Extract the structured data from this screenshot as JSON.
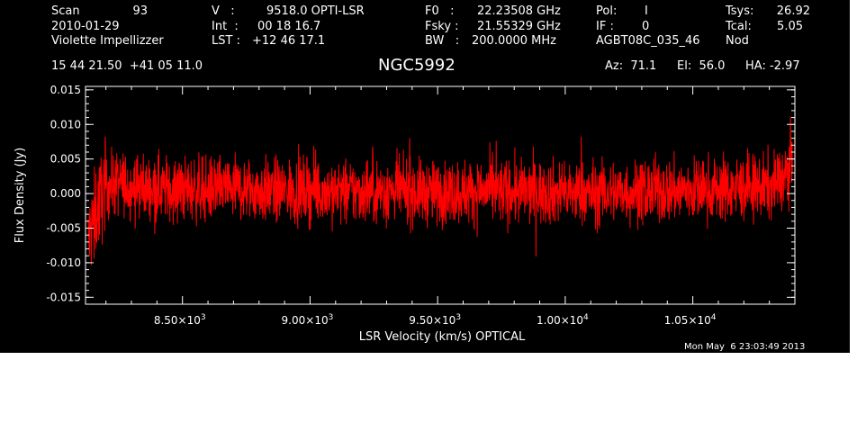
{
  "header": {
    "scan_label": "Scan",
    "scan_value": "93",
    "date": "2010-01-29",
    "observer": "Violette Impellizzer",
    "v_label": "V   :",
    "v_value": "9518.0 OPTI-LSR",
    "int_label": "Int  :",
    "int_value": "00 18 16.7",
    "lst_label": "LST :",
    "lst_value": "+12 46 17.1",
    "f0_label": "F0   :",
    "f0_value": "22.23508 GHz",
    "fsky_label": "Fsky :",
    "fsky_value": "21.55329 GHz",
    "bw_label": "BW   :",
    "bw_value": "200.0000 MHz",
    "pol_label": "Pol:",
    "pol_value": "I",
    "if_label": "IF :",
    "if_value": "0",
    "project": "AGBT08C_035_46",
    "tsys_label": "Tsys:",
    "tsys_value": "26.92",
    "tcal_label": "Tcal:",
    "tcal_value": "5.05",
    "proc": "Nod",
    "coords": "15 44 21.50  +41 05 11.0",
    "az": "Az:  71.1",
    "el": "El:  56.0",
    "ha": "HA: -2.97"
  },
  "timestamp": "Mon May  6 23:03:49 2013",
  "chart_data": {
    "type": "line",
    "title": "NGC5992",
    "xlabel": "LSR Velocity (km/s) OPTICAL",
    "ylabel": "Flux Density (Jy)",
    "xlim": [
      8120,
      10900
    ],
    "ylim": [
      -0.016,
      0.0155
    ],
    "x_ticks": [
      {
        "value": 8500,
        "mant": "8.50×10",
        "exp": "3"
      },
      {
        "value": 9000,
        "mant": "9.00×10",
        "exp": "3"
      },
      {
        "value": 9500,
        "mant": "9.50×10",
        "exp": "3"
      },
      {
        "value": 10000,
        "mant": "1.00×10",
        "exp": "4"
      },
      {
        "value": 10500,
        "mant": "1.05×10",
        "exp": "4"
      }
    ],
    "y_ticks": [
      {
        "value": 0.015,
        "label": "0.015"
      },
      {
        "value": 0.01,
        "label": "0.010"
      },
      {
        "value": 0.005,
        "label": "0.005"
      },
      {
        "value": 0.0,
        "label": "0.000"
      },
      {
        "value": -0.005,
        "label": "-0.005"
      },
      {
        "value": -0.01,
        "label": "-0.010"
      },
      {
        "value": -0.015,
        "label": "-0.015"
      }
    ],
    "series": [
      {
        "color": "#ff0000",
        "noise_sigma": 0.0023,
        "x": [
          8130,
          8150,
          8175,
          8200,
          8250,
          8300,
          8400,
          8500,
          8600,
          8700,
          8800,
          8900,
          9000,
          9100,
          9200,
          9300,
          9400,
          9500,
          9600,
          9700,
          9800,
          9900,
          10000,
          10100,
          10200,
          10300,
          10400,
          10500,
          10600,
          10700,
          10800,
          10850,
          10880,
          10890
        ],
        "y": [
          -0.007,
          -0.004,
          -0.001,
          0.001,
          0.0015,
          0.001,
          0.0008,
          0.0006,
          0.0005,
          0.0008,
          0.0004,
          0.0003,
          0.0005,
          0.0002,
          0.0003,
          0.0004,
          0.0002,
          0.0001,
          0.0003,
          0.0004,
          0.0002,
          0.0003,
          0.0001,
          0.0,
          0.0002,
          0.0003,
          0.0004,
          0.0005,
          0.0006,
          0.0008,
          0.001,
          0.002,
          0.004,
          0.006
        ]
      }
    ]
  }
}
